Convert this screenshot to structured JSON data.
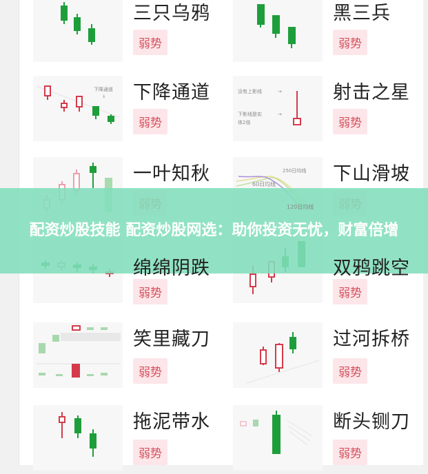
{
  "cards": [
    {
      "title": "三只乌鸦",
      "badge": "弱势"
    },
    {
      "title": "黑三兵",
      "badge": "弱势"
    },
    {
      "title": "下降通道",
      "badge": "弱势",
      "labels": [
        "下降通道"
      ]
    },
    {
      "title": "射击之星",
      "badge": "弱势",
      "labels": [
        "没有上影线",
        "下影线是实",
        "体2倍"
      ]
    },
    {
      "title": "一叶知秋",
      "badge": "弱势"
    },
    {
      "title": "下山滑坡",
      "badge": "弱势",
      "labels": [
        "250日均线",
        "60日均线",
        "120日均线"
      ]
    },
    {
      "title": "绵绵阴跌",
      "badge": "弱势"
    },
    {
      "title": "双鸦跳空",
      "badge": "弱势"
    },
    {
      "title": "笑里藏刀",
      "badge": "弱势"
    },
    {
      "title": "过河拆桥",
      "badge": "弱势"
    },
    {
      "title": "拖泥带水",
      "badge": "弱势"
    },
    {
      "title": "断头铡刀",
      "badge": "弱势"
    }
  ],
  "banner": {
    "text": "配资炒股技能 配资炒股网选：助你投资无忧，财富倍增"
  },
  "colors": {
    "bearish": "#1e9e3a",
    "bullish": "#d43a4a",
    "badge_bg": "#fce6e9",
    "badge_text": "#d4505c",
    "banner": "#82debc"
  }
}
